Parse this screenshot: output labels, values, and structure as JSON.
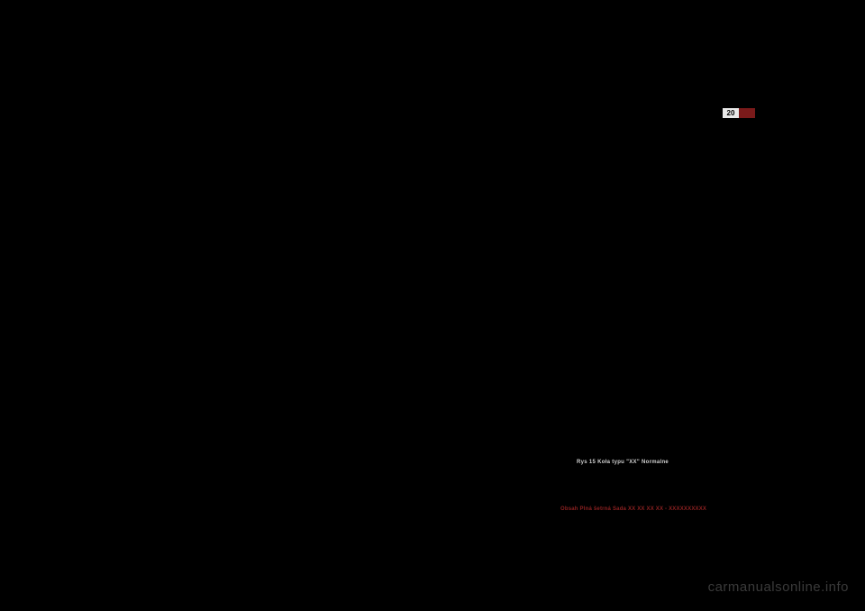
{
  "badge": {
    "left_text": "20",
    "left_bg": "#e8e8e8",
    "right_bg": "#7a1a1a"
  },
  "caption": {
    "text": "Rys 15 Koła typu \"XX\" Normalne"
  },
  "link": {
    "text": "Obsah Plná šetrná Sada XX XX XX XX - XXXXXXXXXX"
  },
  "watermark": {
    "text": "carmanualsonline.info"
  }
}
